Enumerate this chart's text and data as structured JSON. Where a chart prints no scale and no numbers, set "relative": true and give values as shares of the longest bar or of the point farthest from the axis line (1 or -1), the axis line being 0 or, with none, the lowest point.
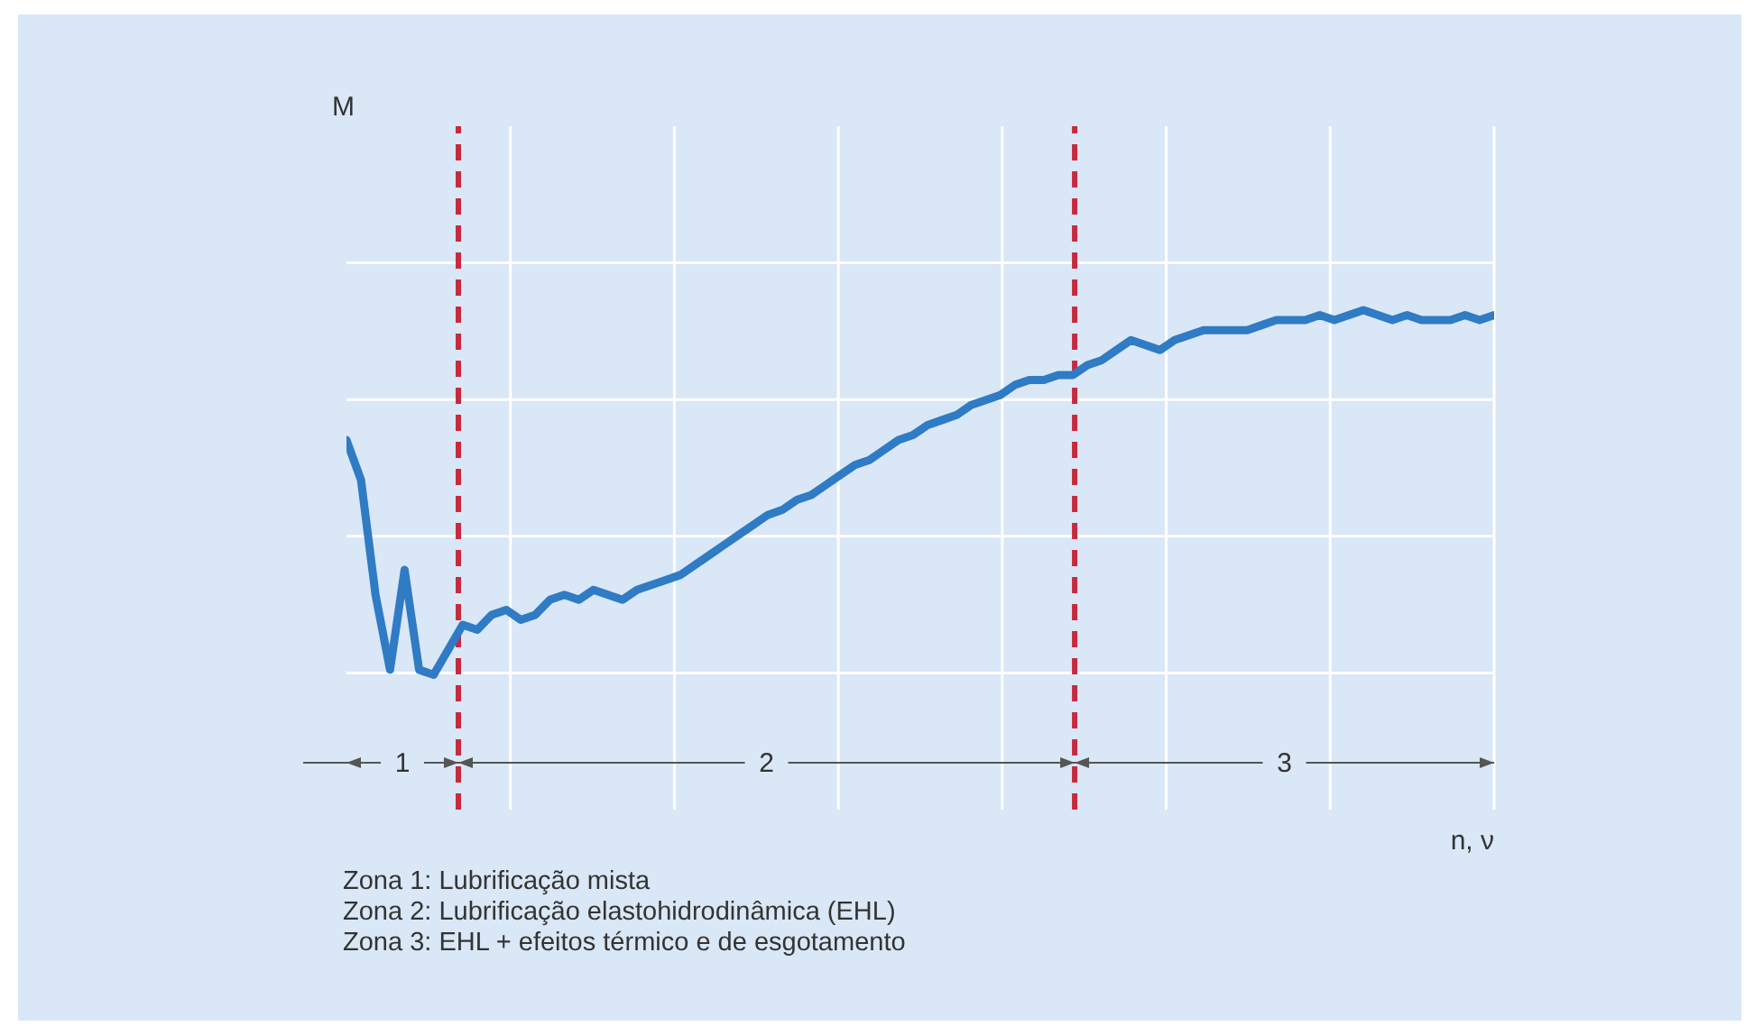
{
  "chart_data": {
    "type": "line",
    "relative": true,
    "xlabel": "n, ν",
    "color": "#2f7bc4",
    "grid": true,
    "categories": [
      null,
      null,
      null,
      null,
      null,
      null,
      null,
      null,
      null,
      null,
      null,
      null,
      null,
      null,
      null,
      null,
      null,
      null,
      null,
      null,
      null,
      null,
      null,
      null,
      null,
      null,
      null,
      null,
      null,
      null,
      null,
      null,
      null,
      null,
      null,
      null,
      null,
      null,
      null,
      null,
      null,
      null,
      null,
      null,
      null,
      null,
      null,
      null,
      null,
      null,
      null,
      null,
      null,
      null,
      null,
      null,
      null,
      null,
      null,
      null,
      null,
      null,
      null,
      null,
      null,
      null,
      null,
      null,
      null,
      null,
      null,
      null,
      null,
      null,
      null,
      null,
      null,
      null,
      null,
      null
    ],
    "values": [
      0.74,
      0.66,
      0.43,
      0.28,
      0.48,
      0.28,
      0.27,
      0.32,
      0.37,
      0.36,
      0.39,
      0.4,
      0.38,
      0.39,
      0.42,
      0.43,
      0.42,
      0.44,
      0.43,
      0.42,
      0.44,
      0.45,
      0.46,
      0.47,
      0.49,
      0.51,
      0.53,
      0.55,
      0.57,
      0.59,
      0.6,
      0.62,
      0.63,
      0.65,
      0.67,
      0.69,
      0.7,
      0.72,
      0.74,
      0.75,
      0.77,
      0.78,
      0.79,
      0.81,
      0.82,
      0.83,
      0.85,
      0.86,
      0.86,
      0.87,
      0.87,
      0.89,
      0.9,
      0.92,
      0.94,
      0.93,
      0.92,
      0.94,
      0.95,
      0.96,
      0.96,
      0.96,
      0.96,
      0.97,
      0.98,
      0.98,
      0.98,
      0.99,
      0.98,
      0.99,
      1,
      0.99,
      0.98,
      0.99,
      0.98,
      0.98,
      0.98,
      0.99,
      0.98,
      0.99
    ],
    "annotations": [
      "M",
      "1",
      "2",
      "3",
      "Zona 1: Lubrificação mista",
      "Zona 2: Lubrificação elastohidrodinâmica (EHL)",
      "Zona 3: EHL + efeitos térmico e de esgotamento"
    ]
  }
}
